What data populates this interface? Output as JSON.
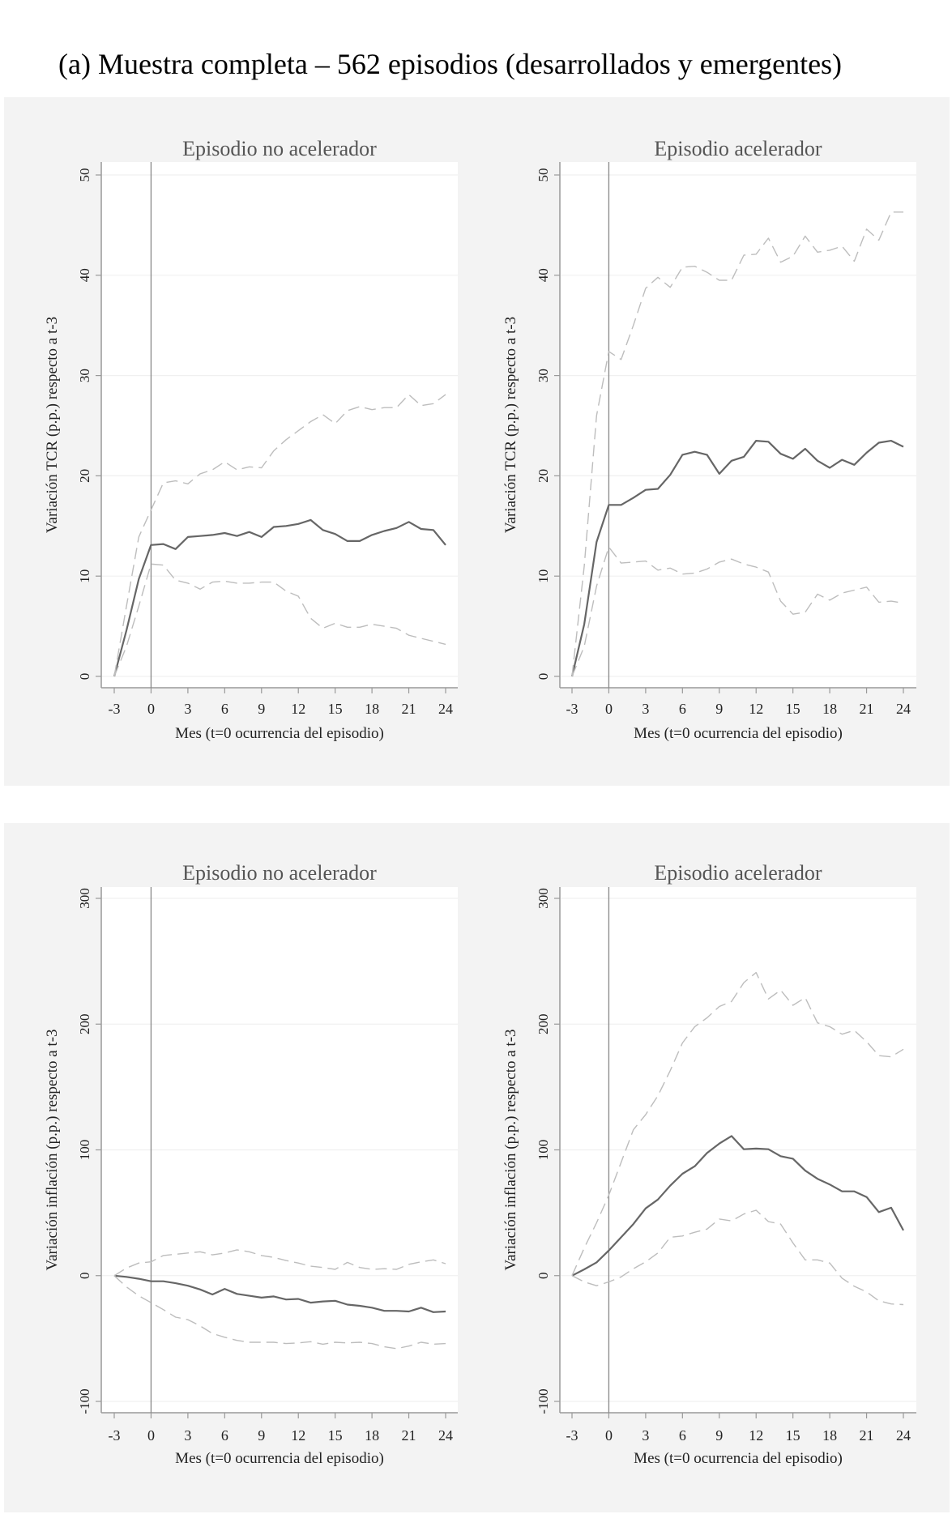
{
  "figure_title": "(a) Muestra completa – 562 episodios (desarrollados y emergentes)",
  "colors": {
    "background": "#f3f3f3",
    "plot": "#ffffff",
    "mean": "#666666",
    "ci": "#bdbdbd",
    "vline": "#888888",
    "grid": "#f0f0f0"
  },
  "chart_data": [
    {
      "type": "line",
      "title": "Episodio no acelerador",
      "xlabel": "Mes (t=0 ocurrencia del episodio)",
      "ylabel": "Variación TCR (p.p.) respecto a t-3",
      "xlim": [
        -3,
        24
      ],
      "ylim": [
        0,
        50
      ],
      "xticks": [
        "-3",
        "0",
        "3",
        "6",
        "9",
        "12",
        "15",
        "18",
        "21",
        "24"
      ],
      "yticks": [
        "0",
        "10",
        "20",
        "30",
        "40",
        "50"
      ],
      "grid": true,
      "vline_at": 0,
      "x": [
        -3,
        -2,
        -1,
        0,
        1,
        2,
        3,
        4,
        5,
        6,
        7,
        8,
        9,
        10,
        11,
        12,
        13,
        14,
        15,
        16,
        17,
        18,
        19,
        20,
        21,
        22,
        23,
        24
      ],
      "series": [
        {
          "style": "solid",
          "values": [
            0,
            4.6,
            9.7,
            13.1,
            13.2,
            12.7,
            13.9,
            14.0,
            14.1,
            14.3,
            14.0,
            14.4,
            13.9,
            14.9,
            15.0,
            15.2,
            15.6,
            14.6,
            14.2,
            13.5,
            13.5,
            14.1,
            14.5,
            14.8,
            15.4,
            14.7,
            14.6,
            13.1
          ]
        },
        {
          "style": "dashed",
          "values": [
            0,
            7,
            13.9,
            16.6,
            19.3,
            19.5,
            19.2,
            20.2,
            20.6,
            21.4,
            20.6,
            20.9,
            20.8,
            22.5,
            23.6,
            24.5,
            25.4,
            26.1,
            25.2,
            26.5,
            26.9,
            26.6,
            26.8,
            26.8,
            28.1,
            27.0,
            27.2,
            28.1
          ]
        },
        {
          "style": "dashed",
          "values": [
            0,
            3,
            7,
            11.2,
            11.1,
            9.6,
            9.3,
            8.7,
            9.4,
            9.5,
            9.3,
            9.3,
            9.4,
            9.4,
            8.5,
            8.0,
            5.8,
            4.8,
            5.3,
            4.9,
            4.9,
            5.2,
            5.0,
            4.8,
            4.1,
            3.8,
            3.5,
            3.2
          ]
        }
      ]
    },
    {
      "type": "line",
      "title": "Episodio acelerador",
      "xlabel": "Mes (t=0 ocurrencia del episodio)",
      "ylabel": "Variación TCR (p.p.) respecto a t-3",
      "xlim": [
        -3,
        24
      ],
      "ylim": [
        0,
        50
      ],
      "xticks": [
        "-3",
        "0",
        "3",
        "6",
        "9",
        "12",
        "15",
        "18",
        "21",
        "24"
      ],
      "yticks": [
        "0",
        "10",
        "20",
        "30",
        "40",
        "50"
      ],
      "grid": true,
      "vline_at": 0,
      "x": [
        -3,
        -2,
        -1,
        0,
        1,
        2,
        3,
        4,
        5,
        6,
        7,
        8,
        9,
        10,
        11,
        12,
        13,
        14,
        15,
        16,
        17,
        18,
        19,
        20,
        21,
        22,
        23,
        24
      ],
      "series": [
        {
          "style": "solid",
          "values": [
            0,
            5.2,
            13.4,
            17.1,
            17.1,
            17.8,
            18.6,
            18.7,
            20.1,
            22.1,
            22.4,
            22.1,
            20.2,
            21.5,
            21.9,
            23.5,
            23.4,
            22.2,
            21.7,
            22.7,
            21.5,
            20.8,
            21.6,
            21.1,
            22.3,
            23.3,
            23.5,
            22.9
          ]
        },
        {
          "style": "dashed",
          "values": [
            0,
            11,
            26,
            32.4,
            31.6,
            35,
            38.7,
            39.8,
            38.8,
            40.8,
            40.9,
            40.3,
            39.5,
            39.5,
            42.0,
            42.1,
            43.7,
            41.3,
            41.9,
            43.9,
            42.3,
            42.5,
            42.9,
            41.4,
            44.6,
            43.5,
            46.3,
            46.3
          ]
        },
        {
          "style": "dashed",
          "values": [
            0,
            3,
            9,
            12.9,
            11.3,
            11.4,
            11.5,
            10.6,
            10.8,
            10.2,
            10.3,
            10.7,
            11.4,
            11.7,
            11.2,
            10.9,
            10.4,
            7.5,
            6.2,
            6.4,
            8.2,
            7.6,
            8.3,
            8.6,
            8.9,
            7.4,
            7.5,
            7.3
          ]
        }
      ]
    },
    {
      "type": "line",
      "title": "Episodio no acelerador",
      "xlabel": "Mes (t=0 ocurrencia del episodio)",
      "ylabel": "Variación inflación (p.p.) respecto a t-3",
      "xlim": [
        -3,
        24
      ],
      "ylim": [
        -100,
        300
      ],
      "xticks": [
        "-3",
        "0",
        "3",
        "6",
        "9",
        "12",
        "15",
        "18",
        "21",
        "24"
      ],
      "yticks": [
        "-100",
        "0",
        "100",
        "200",
        "300"
      ],
      "grid": true,
      "vline_at": 0,
      "x": [
        -3,
        -2,
        -1,
        0,
        1,
        2,
        3,
        4,
        5,
        6,
        7,
        8,
        9,
        10,
        11,
        12,
        13,
        14,
        15,
        16,
        17,
        18,
        19,
        20,
        21,
        22,
        23,
        24
      ],
      "series": [
        {
          "style": "solid",
          "values": [
            0,
            -1,
            -2.5,
            -4.5,
            -4.5,
            -6,
            -8,
            -11,
            -15,
            -10.5,
            -14.5,
            -16,
            -17.5,
            -16.5,
            -19,
            -18.5,
            -21.5,
            -20.5,
            -20,
            -23,
            -24,
            -25.5,
            -28,
            -28,
            -28.5,
            -25.5,
            -29,
            -28.5
          ]
        },
        {
          "style": "dashed",
          "values": [
            0,
            6,
            10,
            11,
            16,
            17,
            18,
            19,
            16.5,
            18,
            20.5,
            19,
            16,
            14.5,
            12,
            10,
            7.5,
            6.5,
            5,
            10.5,
            6.5,
            5,
            5.5,
            5,
            9,
            11,
            12.5,
            9.5
          ]
        },
        {
          "style": "dashed",
          "values": [
            0,
            -9,
            -16,
            -21.5,
            -27,
            -33,
            -35,
            -40,
            -46,
            -49,
            -51.5,
            -53,
            -53,
            -53,
            -54,
            -53.5,
            -52.5,
            -54.5,
            -53,
            -53.5,
            -53,
            -54,
            -56.5,
            -58,
            -56,
            -53,
            -54.5,
            -54
          ]
        }
      ]
    },
    {
      "type": "line",
      "title": "Episodio acelerador",
      "xlabel": "Mes (t=0 ocurrencia del episodio)",
      "ylabel": "Variación inflación (p.p.) respecto a t-3",
      "xlim": [
        -3,
        24
      ],
      "ylim": [
        -100,
        300
      ],
      "xticks": [
        "-3",
        "0",
        "3",
        "6",
        "9",
        "12",
        "15",
        "18",
        "21",
        "24"
      ],
      "yticks": [
        "-100",
        "0",
        "100",
        "200",
        "300"
      ],
      "grid": true,
      "vline_at": 0,
      "x": [
        -3,
        -2,
        -1,
        0,
        1,
        2,
        3,
        4,
        5,
        6,
        7,
        8,
        9,
        10,
        11,
        12,
        13,
        14,
        15,
        16,
        17,
        18,
        19,
        20,
        21,
        22,
        23,
        24
      ],
      "series": [
        {
          "style": "solid",
          "values": [
            0,
            5,
            10.5,
            20,
            30.5,
            41,
            53.5,
            60.5,
            71.5,
            81,
            87,
            97.5,
            105,
            111,
            100.5,
            101,
            100.5,
            95,
            93,
            83.5,
            77,
            72.5,
            67,
            67,
            62.5,
            50.5,
            54,
            36
          ]
        },
        {
          "style": "dashed",
          "values": [
            0,
            22,
            42,
            64,
            90,
            116,
            128,
            143,
            163,
            185,
            198,
            205,
            214,
            218,
            233,
            241,
            220,
            227,
            215,
            221,
            201,
            198,
            192,
            195,
            186,
            175,
            174,
            180
          ]
        },
        {
          "style": "dashed",
          "values": [
            0,
            -5,
            -8,
            -5,
            -1,
            5.5,
            11,
            18,
            30.5,
            31.5,
            34.5,
            37,
            45,
            43.5,
            49,
            52,
            43,
            41,
            26,
            12.5,
            12.5,
            10,
            -2,
            -8.5,
            -13,
            -20,
            -22.5,
            -23
          ]
        }
      ]
    }
  ]
}
